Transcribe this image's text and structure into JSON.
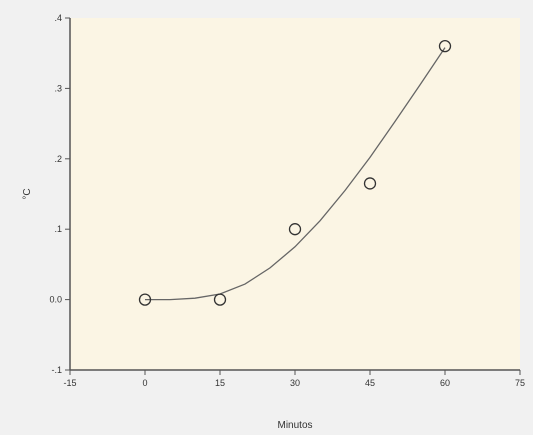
{
  "chart_data": {
    "type": "scatter",
    "title": "",
    "xlabel": "Minutos",
    "ylabel": "°C",
    "xlim": [
      -15,
      75
    ],
    "ylim": [
      -0.1,
      0.4
    ],
    "xticks": [
      -15,
      0,
      15,
      30,
      45,
      60,
      75
    ],
    "xtick_labels": [
      "-15",
      "0",
      "15",
      "30",
      "45",
      "60",
      "75"
    ],
    "yticks": [
      -0.1,
      0.0,
      0.1,
      0.2,
      0.3,
      0.4
    ],
    "ytick_labels": [
      "-.1",
      "0.0",
      ".1",
      ".2",
      ".3",
      ".4"
    ],
    "grid": false,
    "series": [
      {
        "type": "scatter",
        "marker": "open-circle",
        "x": [
          0,
          15,
          30,
          45,
          60
        ],
        "y": [
          0.0,
          0.0,
          0.1,
          0.165,
          0.36
        ]
      },
      {
        "type": "line",
        "fit": "cubic",
        "x": [
          0,
          5,
          10,
          15,
          20,
          25,
          30,
          35,
          40,
          45,
          50,
          55,
          60
        ],
        "y": [
          0.0,
          0.0,
          0.002,
          0.008,
          0.022,
          0.045,
          0.075,
          0.112,
          0.155,
          0.202,
          0.253,
          0.305,
          0.358
        ]
      }
    ],
    "colors": {
      "plot_background": "#fbf5e4",
      "axis": "#555555",
      "marker": "#333333",
      "line": "#666666"
    }
  }
}
